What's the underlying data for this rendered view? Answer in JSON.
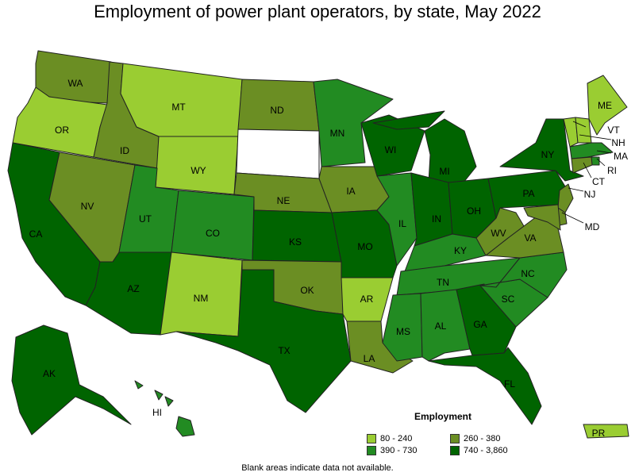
{
  "title": "Employment of power plant operators, by state, May 2022",
  "legend": {
    "title": "Employment",
    "classes": [
      {
        "label": "80 - 240",
        "color": "#9acd32"
      },
      {
        "label": "260 - 380",
        "color": "#6b8e23"
      },
      {
        "label": "390 - 730",
        "color": "#228b22"
      },
      {
        "label": "740 - 3,860",
        "color": "#006400"
      }
    ]
  },
  "note": "Blank areas indicate data not available.",
  "colors": {
    "no_data": "#ffffff",
    "border": "#222222"
  },
  "states": [
    {
      "code": "WA",
      "class": 1
    },
    {
      "code": "OR",
      "class": 0
    },
    {
      "code": "CA",
      "class": 3
    },
    {
      "code": "ID",
      "class": 1
    },
    {
      "code": "NV",
      "class": 1
    },
    {
      "code": "MT",
      "class": 0
    },
    {
      "code": "WY",
      "class": 0
    },
    {
      "code": "UT",
      "class": 2
    },
    {
      "code": "AZ",
      "class": 3
    },
    {
      "code": "CO",
      "class": 2
    },
    {
      "code": "NM",
      "class": 0
    },
    {
      "code": "ND",
      "class": 1
    },
    {
      "code": "SD",
      "class": null
    },
    {
      "code": "NE",
      "class": 1
    },
    {
      "code": "KS",
      "class": 3
    },
    {
      "code": "OK",
      "class": 1
    },
    {
      "code": "TX",
      "class": 3
    },
    {
      "code": "MN",
      "class": 2
    },
    {
      "code": "IA",
      "class": 1
    },
    {
      "code": "MO",
      "class": 3
    },
    {
      "code": "AR",
      "class": 0
    },
    {
      "code": "LA",
      "class": 1
    },
    {
      "code": "WI",
      "class": 3
    },
    {
      "code": "IL",
      "class": 2
    },
    {
      "code": "MI",
      "class": 3
    },
    {
      "code": "IN",
      "class": 3
    },
    {
      "code": "OH",
      "class": 3
    },
    {
      "code": "KY",
      "class": 2
    },
    {
      "code": "TN",
      "class": 2
    },
    {
      "code": "MS",
      "class": 2
    },
    {
      "code": "AL",
      "class": 2
    },
    {
      "code": "GA",
      "class": 3
    },
    {
      "code": "FL",
      "class": 3
    },
    {
      "code": "SC",
      "class": 2
    },
    {
      "code": "NC",
      "class": 2
    },
    {
      "code": "VA",
      "class": 1
    },
    {
      "code": "WV",
      "class": 1
    },
    {
      "code": "PA",
      "class": 3
    },
    {
      "code": "NY",
      "class": 3
    },
    {
      "code": "ME",
      "class": 0
    },
    {
      "code": "VT",
      "class": 0
    },
    {
      "code": "NH",
      "class": 0
    },
    {
      "code": "MA",
      "class": 2
    },
    {
      "code": "RI",
      "class": 2
    },
    {
      "code": "CT",
      "class": 1
    },
    {
      "code": "NJ",
      "class": 1
    },
    {
      "code": "DE",
      "class": 1
    },
    {
      "code": "MD",
      "class": 1
    },
    {
      "code": "AK",
      "class": 3
    },
    {
      "code": "HI",
      "class": 2
    },
    {
      "code": "PR",
      "class": 0
    }
  ]
}
